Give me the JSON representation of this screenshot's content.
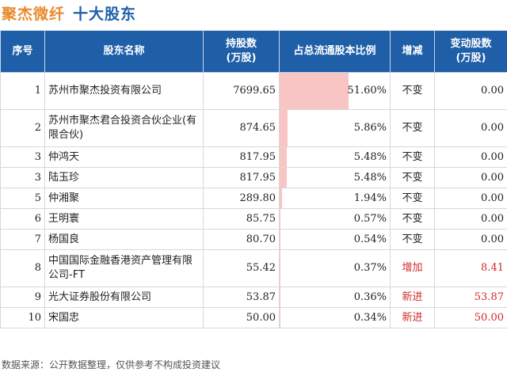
{
  "header": {
    "company": "聚杰微纤",
    "title": "十大股东"
  },
  "columns": {
    "rank": "序号",
    "name": "股东名称",
    "holding_line1": "持股数",
    "holding_line2": "(万股)",
    "ratio": "占总流通股本比例",
    "change": "增减",
    "delta_line1": "变动股数",
    "delta_line2": "(万股)"
  },
  "rows": [
    {
      "rank": "1",
      "name": "苏州市聚杰投资有限公司",
      "holding": "7699.65",
      "ratio": "51.60%",
      "ratio_value": 51.6,
      "change": "不变",
      "delta": "0.00",
      "status": "same"
    },
    {
      "rank": "2",
      "name": "苏州市聚杰君合投资合伙企业(有限合伙)",
      "holding": "874.65",
      "ratio": "5.86%",
      "ratio_value": 5.86,
      "change": "不变",
      "delta": "0.00",
      "status": "same"
    },
    {
      "rank": "3",
      "name": "仲鸿天",
      "holding": "817.95",
      "ratio": "5.48%",
      "ratio_value": 5.48,
      "change": "不变",
      "delta": "0.00",
      "status": "same"
    },
    {
      "rank": "3",
      "name": "陆玉珍",
      "holding": "817.95",
      "ratio": "5.48%",
      "ratio_value": 5.48,
      "change": "不变",
      "delta": "0.00",
      "status": "same"
    },
    {
      "rank": "5",
      "name": "仲湘聚",
      "holding": "289.80",
      "ratio": "1.94%",
      "ratio_value": 1.94,
      "change": "不变",
      "delta": "0.00",
      "status": "same"
    },
    {
      "rank": "6",
      "name": "王明寰",
      "holding": "85.75",
      "ratio": "0.57%",
      "ratio_value": 0.57,
      "change": "不变",
      "delta": "0.00",
      "status": "same"
    },
    {
      "rank": "7",
      "name": "杨国良",
      "holding": "80.70",
      "ratio": "0.54%",
      "ratio_value": 0.54,
      "change": "不变",
      "delta": "0.00",
      "status": "same"
    },
    {
      "rank": "8",
      "name": "中国国际金融香港资产管理有限公司-FT",
      "holding": "55.42",
      "ratio": "0.37%",
      "ratio_value": 0.37,
      "change": "增加",
      "delta": "8.41",
      "status": "up"
    },
    {
      "rank": "9",
      "name": "光大证券股份有限公司",
      "holding": "53.87",
      "ratio": "0.36%",
      "ratio_value": 0.36,
      "change": "新进",
      "delta": "53.87",
      "status": "new"
    },
    {
      "rank": "10",
      "name": "宋国忠",
      "holding": "50.00",
      "ratio": "0.34%",
      "ratio_value": 0.34,
      "change": "新进",
      "delta": "50.00",
      "status": "new"
    }
  ],
  "footer": "数据来源：公开数据整理，仅供参考不构成投资建议",
  "colors": {
    "header_bg": "#1f5fa8",
    "company_title": "#e8892a",
    "bar": "#f9c4c4",
    "highlight": "#d42a2a"
  }
}
